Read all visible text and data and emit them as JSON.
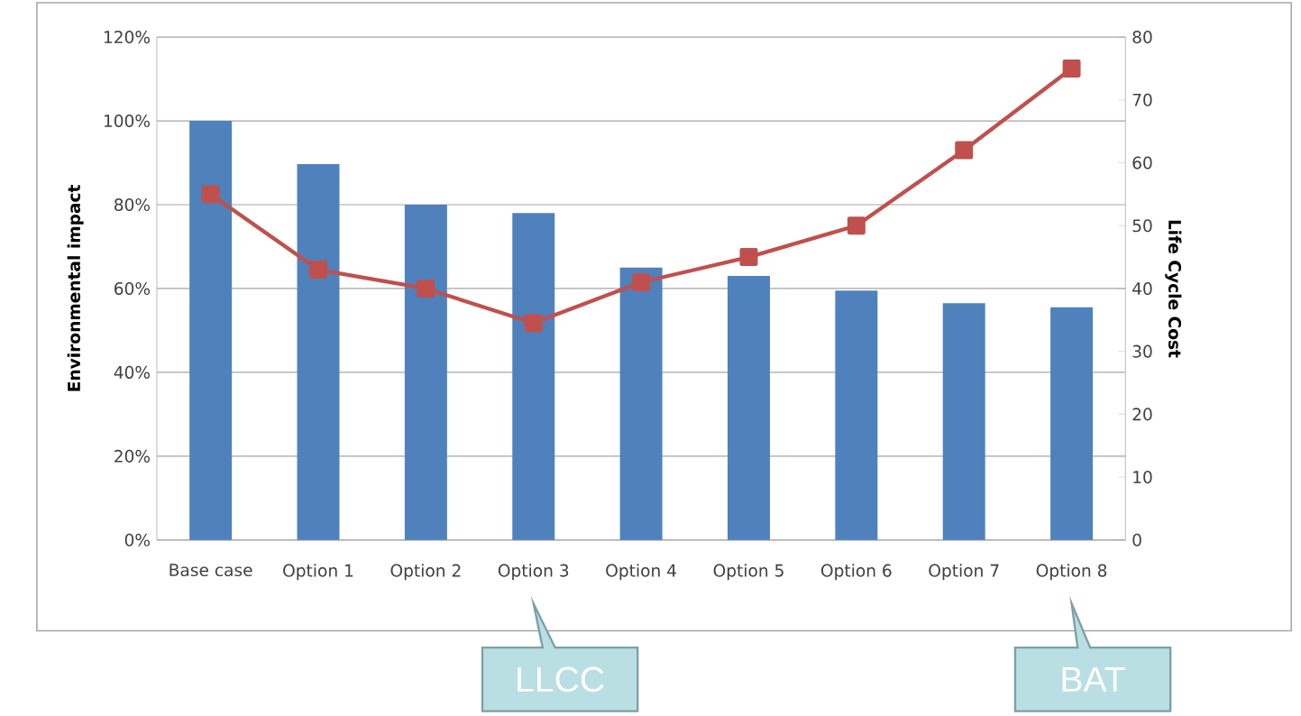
{
  "chart_data": {
    "type": "bar",
    "categories": [
      "Base case",
      "Option 1",
      "Option 2",
      "Option 3",
      "Option 4",
      "Option 5",
      "Option 6",
      "Option 7",
      "Option 8"
    ],
    "series": [
      {
        "color": "#4f81bd",
        "values": [
          100,
          89.7,
          80,
          78,
          65,
          63,
          59.5,
          56.5,
          55.5
        ]
      },
      {
        "type": "line",
        "axis": "y2",
        "color": "#c0504d",
        "marker": "square",
        "values": [
          55,
          43,
          40,
          34.5,
          41,
          45,
          50,
          62,
          75
        ]
      }
    ],
    "ylabel": "Environmental impact",
    "y2label": "Life Cycle Cost",
    "ylim": [
      0,
      120
    ],
    "yticks": [
      {
        "value": 0,
        "label": "0%"
      },
      {
        "value": 20,
        "label": "20%"
      },
      {
        "value": 40,
        "label": "40%"
      },
      {
        "value": 60,
        "label": "60%"
      },
      {
        "value": 80,
        "label": "80%"
      },
      {
        "value": 100,
        "label": "100%"
      },
      {
        "value": 120,
        "label": "120%"
      }
    ],
    "y2lim": [
      0,
      80
    ],
    "y2ticks": [
      0,
      10,
      20,
      30,
      40,
      50,
      60,
      70,
      80
    ],
    "grid": "y",
    "annotations": [
      "LLCC",
      "BAT"
    ]
  }
}
